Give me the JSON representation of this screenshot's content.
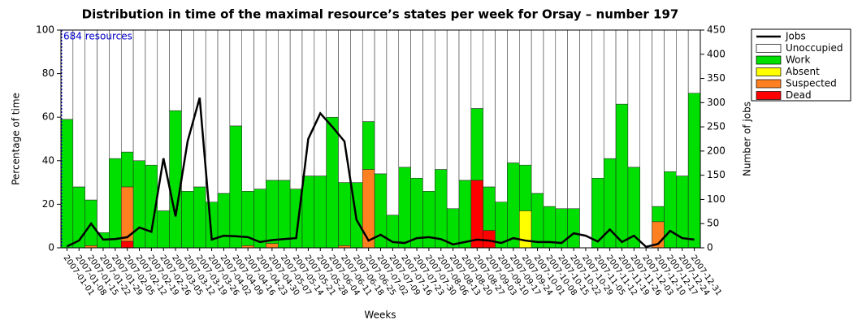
{
  "chart_data": {
    "type": "bar",
    "stacked": true,
    "title": "Distribution in time of the maximal resource’s states per week for Orsay – number 197",
    "xlabel": "Weeks",
    "ylabel": "Percentage of time",
    "y2label": "Number of jobs",
    "annotation": "684 resources",
    "legend": "right",
    "categories": [
      "2007-01-01",
      "2007-01-08",
      "2007-01-15",
      "2007-01-22",
      "2007-01-29",
      "2007-02-05",
      "2007-02-12",
      "2007-02-19",
      "2007-02-26",
      "2007-03-05",
      "2007-03-12",
      "2007-03-19",
      "2007-03-26",
      "2007-04-02",
      "2007-04-09",
      "2007-04-16",
      "2007-04-23",
      "2007-04-30",
      "2007-05-07",
      "2007-05-14",
      "2007-05-21",
      "2007-05-28",
      "2007-06-04",
      "2007-06-11",
      "2007-06-18",
      "2007-06-25",
      "2007-07-02",
      "2007-07-09",
      "2007-07-16",
      "2007-07-23",
      "2007-07-30",
      "2007-08-06",
      "2007-08-13",
      "2007-08-20",
      "2007-08-27",
      "2007-09-03",
      "2007-09-10",
      "2007-09-17",
      "2007-09-24",
      "2007-10-01",
      "2007-10-08",
      "2007-10-15",
      "2007-10-22",
      "2007-10-29",
      "2007-11-05",
      "2007-11-12",
      "2007-11-19",
      "2007-11-26",
      "2007-12-03",
      "2007-12-10",
      "2007-12-17",
      "2007-12-24",
      "2007-12-31"
    ],
    "series": [
      {
        "name": "Dead",
        "color": "#ff0000",
        "values": [
          0,
          0,
          0,
          0,
          0,
          3,
          0,
          0,
          0,
          0,
          0,
          0,
          0,
          0,
          0,
          0,
          0,
          0,
          0,
          0,
          0,
          0,
          0,
          0,
          0,
          0,
          0,
          0,
          0,
          0,
          0,
          0,
          0,
          0,
          31,
          8,
          0,
          0,
          0,
          0,
          0,
          0,
          0,
          0,
          0,
          0,
          0,
          0,
          0,
          0,
          0,
          0,
          0
        ]
      },
      {
        "name": "Suspected",
        "color": "#ff8020",
        "values": [
          0,
          0,
          1,
          0,
          0,
          25,
          0,
          0,
          0,
          0,
          0,
          0,
          0,
          0,
          0,
          1,
          0,
          2,
          0,
          0,
          0,
          0,
          0,
          1,
          0,
          36,
          0,
          0,
          0,
          0,
          0,
          0,
          0,
          0,
          0,
          0,
          0,
          0,
          0,
          0,
          0,
          0,
          0,
          0,
          0,
          0,
          0,
          0,
          0,
          12,
          0,
          0,
          0
        ]
      },
      {
        "name": "Absent",
        "color": "#ffff00",
        "values": [
          0,
          0,
          0,
          0,
          0,
          0,
          0,
          0,
          0,
          0,
          0,
          0,
          0,
          0,
          0,
          0,
          0,
          0,
          0,
          0,
          0,
          0,
          0,
          0,
          0,
          0,
          0,
          0,
          0,
          0,
          0,
          0,
          0,
          0,
          0,
          0,
          0,
          0,
          17,
          0,
          0,
          0,
          0,
          0,
          0,
          0,
          0,
          0,
          0,
          0,
          0,
          0,
          0
        ]
      },
      {
        "name": "Work",
        "color": "#00e000",
        "values": [
          59,
          28,
          21,
          7,
          41,
          16,
          40,
          38,
          17,
          63,
          26,
          28,
          21,
          25,
          56,
          25,
          27,
          29,
          31,
          27,
          33,
          33,
          60,
          29,
          30,
          22,
          34,
          15,
          37,
          32,
          26,
          36,
          18,
          31,
          33,
          20,
          21,
          39,
          21,
          25,
          19,
          18,
          18,
          0,
          32,
          41,
          66,
          37,
          0,
          7,
          35,
          33,
          71
        ]
      },
      {
        "name": "Unoccupied",
        "color": "#ffffff",
        "values": [
          41,
          72,
          78,
          93,
          59,
          56,
          60,
          62,
          83,
          37,
          74,
          72,
          79,
          75,
          44,
          74,
          73,
          69,
          69,
          73,
          67,
          67,
          40,
          70,
          70,
          42,
          66,
          85,
          63,
          68,
          74,
          64,
          82,
          69,
          36,
          72,
          79,
          61,
          62,
          75,
          81,
          82,
          82,
          100,
          68,
          59,
          34,
          63,
          100,
          81,
          65,
          67,
          29
        ]
      },
      {
        "name": "Jobs",
        "color": "#000000",
        "type": "line",
        "axis": "y2",
        "values": [
          3,
          15,
          50,
          17,
          18,
          22,
          42,
          33,
          185,
          65,
          220,
          310,
          17,
          25,
          24,
          22,
          12,
          16,
          18,
          20,
          225,
          278,
          250,
          220,
          58,
          15,
          27,
          12,
          10,
          20,
          22,
          18,
          7,
          12,
          17,
          15,
          10,
          20,
          15,
          12,
          12,
          10,
          30,
          25,
          13,
          38,
          12,
          25,
          2,
          8,
          35,
          20,
          17
        ]
      }
    ],
    "ylim": [
      0,
      100
    ],
    "yticks": [
      0,
      20,
      40,
      60,
      80,
      100
    ],
    "y2lim": [
      0,
      450
    ],
    "y2ticks": [
      0,
      50,
      100,
      150,
      200,
      250,
      300,
      350,
      400,
      450
    ]
  }
}
